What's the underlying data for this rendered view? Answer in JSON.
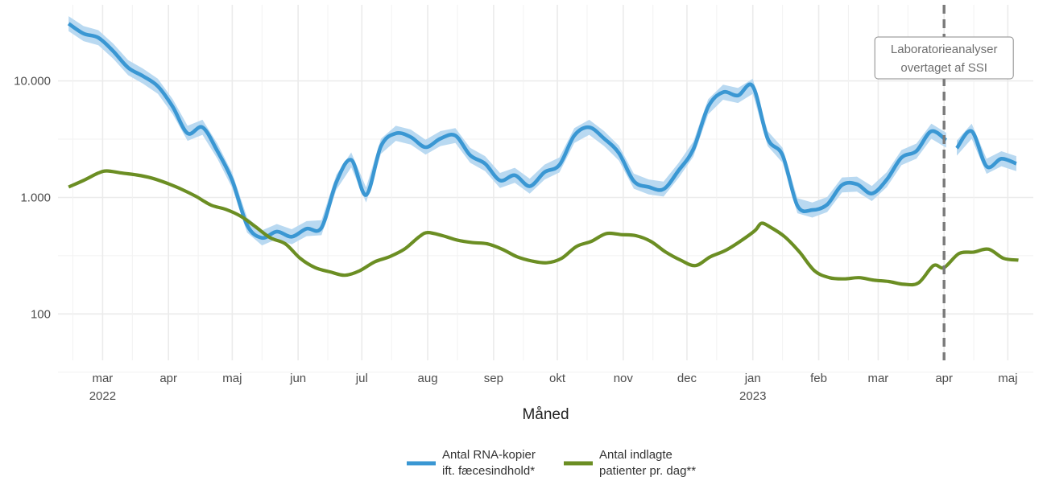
{
  "chart_data": {
    "type": "line",
    "y_scale": "log10",
    "ylim": [
      40,
      45000
    ],
    "xlim": [
      "2022-02-08",
      "2023-05-13"
    ],
    "xlabel": "Måned",
    "ylabel": "",
    "grid": true,
    "legend_position": "bottom",
    "colors": {
      "rna": "#3a97d3",
      "rna_band": "#b9d9f1",
      "hosp": "#6b8e23",
      "vline": "#7a7a7a",
      "grid": "#ebebeb"
    },
    "y_ticks": [
      {
        "value": 100,
        "label": "100"
      },
      {
        "value": 1000,
        "label": "1.000"
      },
      {
        "value": 10000,
        "label": "10.000"
      }
    ],
    "x_ticks": [
      {
        "date": "2022-03-01",
        "label": "mar",
        "year": "2022"
      },
      {
        "date": "2022-04-01",
        "label": "apr",
        "year": ""
      },
      {
        "date": "2022-05-01",
        "label": "maj",
        "year": ""
      },
      {
        "date": "2022-06-01",
        "label": "jun",
        "year": ""
      },
      {
        "date": "2022-07-01",
        "label": "jul",
        "year": ""
      },
      {
        "date": "2022-08-01",
        "label": "aug",
        "year": ""
      },
      {
        "date": "2022-09-01",
        "label": "sep",
        "year": ""
      },
      {
        "date": "2022-10-01",
        "label": "okt",
        "year": ""
      },
      {
        "date": "2022-11-01",
        "label": "nov",
        "year": ""
      },
      {
        "date": "2022-12-01",
        "label": "dec",
        "year": ""
      },
      {
        "date": "2023-01-01",
        "label": "jan",
        "year": "2023"
      },
      {
        "date": "2023-02-01",
        "label": "feb",
        "year": ""
      },
      {
        "date": "2023-03-01",
        "label": "mar",
        "year": ""
      },
      {
        "date": "2023-04-01",
        "label": "apr",
        "year": ""
      },
      {
        "date": "2023-05-01",
        "label": "maj",
        "year": ""
      }
    ],
    "vline": {
      "date": "2023-04-01",
      "annotation_lines": [
        "Laboratorieanalyser",
        "overtaget af SSI"
      ]
    },
    "series": [
      {
        "name_lines": [
          "Antal RNA-kopier",
          "ift. fæcesindhold*"
        ],
        "key": "rna",
        "segments": [
          [
            [
              "2022-02-13",
              31000
            ],
            [
              "2022-02-20",
              25500
            ],
            [
              "2022-02-27",
              23500
            ],
            [
              "2022-03-06",
              18000
            ],
            [
              "2022-03-13",
              13000
            ],
            [
              "2022-03-20",
              11000
            ],
            [
              "2022-03-27",
              9000
            ],
            [
              "2022-04-03",
              6000
            ],
            [
              "2022-04-10",
              3550
            ],
            [
              "2022-04-17",
              4000
            ],
            [
              "2022-04-24",
              2500
            ],
            [
              "2022-05-01",
              1400
            ],
            [
              "2022-05-08",
              580
            ],
            [
              "2022-05-15",
              450
            ],
            [
              "2022-05-22",
              510
            ],
            [
              "2022-05-29",
              460
            ],
            [
              "2022-06-05",
              540
            ],
            [
              "2022-06-12",
              550
            ],
            [
              "2022-06-19",
              1350
            ],
            [
              "2022-06-26",
              2100
            ],
            [
              "2022-07-03",
              1050
            ],
            [
              "2022-07-10",
              2750
            ],
            [
              "2022-07-17",
              3550
            ],
            [
              "2022-07-24",
              3300
            ],
            [
              "2022-07-31",
              2700
            ],
            [
              "2022-08-07",
              3200
            ],
            [
              "2022-08-14",
              3400
            ],
            [
              "2022-08-21",
              2300
            ],
            [
              "2022-08-28",
              1950
            ],
            [
              "2022-09-04",
              1400
            ],
            [
              "2022-09-11",
              1550
            ],
            [
              "2022-09-18",
              1250
            ],
            [
              "2022-09-25",
              1650
            ],
            [
              "2022-10-02",
              1900
            ],
            [
              "2022-10-09",
              3400
            ],
            [
              "2022-10-16",
              4000
            ],
            [
              "2022-10-23",
              3200
            ],
            [
              "2022-10-30",
              2400
            ],
            [
              "2022-11-06",
              1380
            ],
            [
              "2022-11-13",
              1230
            ],
            [
              "2022-11-20",
              1180
            ],
            [
              "2022-11-27",
              1700
            ],
            [
              "2022-12-04",
              2600
            ],
            [
              "2022-12-11",
              6000
            ],
            [
              "2022-12-18",
              8000
            ],
            [
              "2022-12-25",
              7500
            ],
            [
              "2023-01-01",
              9000
            ],
            [
              "2023-01-08",
              3200
            ],
            [
              "2023-01-15",
              2300
            ],
            [
              "2023-01-22",
              850
            ],
            [
              "2023-01-29",
              780
            ],
            [
              "2023-02-05",
              870
            ],
            [
              "2023-02-12",
              1280
            ],
            [
              "2023-02-19",
              1300
            ],
            [
              "2023-02-26",
              1080
            ],
            [
              "2023-03-05",
              1420
            ],
            [
              "2023-03-12",
              2200
            ],
            [
              "2023-03-19",
              2500
            ],
            [
              "2023-03-26",
              3700
            ],
            [
              "2023-04-02",
              3100
            ]
          ],
          [
            [
              "2023-04-07",
              2650
            ],
            [
              "2023-04-14",
              3700
            ],
            [
              "2023-04-21",
              1850
            ],
            [
              "2023-04-28",
              2150
            ],
            [
              "2023-05-05",
              1950
            ]
          ]
        ]
      },
      {
        "name_lines": [
          "Antal indlagte",
          "patienter pr. dag**"
        ],
        "key": "hosp",
        "segments": [
          [
            [
              "2022-02-13",
              1230
            ],
            [
              "2022-02-20",
              1400
            ],
            [
              "2022-02-27",
              1620
            ],
            [
              "2022-03-03",
              1690
            ],
            [
              "2022-03-10",
              1620
            ],
            [
              "2022-03-17",
              1560
            ],
            [
              "2022-03-24",
              1470
            ],
            [
              "2022-03-31",
              1330
            ],
            [
              "2022-04-07",
              1180
            ],
            [
              "2022-04-14",
              1020
            ],
            [
              "2022-04-21",
              860
            ],
            [
              "2022-04-28",
              790
            ],
            [
              "2022-05-05",
              690
            ],
            [
              "2022-05-12",
              560
            ],
            [
              "2022-05-19",
              450
            ],
            [
              "2022-05-26",
              400
            ],
            [
              "2022-06-02",
              300
            ],
            [
              "2022-06-09",
              250
            ],
            [
              "2022-06-16",
              230
            ],
            [
              "2022-06-23",
              215
            ],
            [
              "2022-06-30",
              235
            ],
            [
              "2022-07-07",
              280
            ],
            [
              "2022-07-14",
              310
            ],
            [
              "2022-07-21",
              360
            ],
            [
              "2022-07-28",
              460
            ],
            [
              "2022-08-01",
              500
            ],
            [
              "2022-08-08",
              470
            ],
            [
              "2022-08-15",
              430
            ],
            [
              "2022-08-22",
              410
            ],
            [
              "2022-08-29",
              400
            ],
            [
              "2022-09-05",
              360
            ],
            [
              "2022-09-12",
              310
            ],
            [
              "2022-09-19",
              285
            ],
            [
              "2022-09-26",
              275
            ],
            [
              "2022-10-03",
              300
            ],
            [
              "2022-10-10",
              380
            ],
            [
              "2022-10-17",
              420
            ],
            [
              "2022-10-24",
              490
            ],
            [
              "2022-10-31",
              480
            ],
            [
              "2022-11-07",
              470
            ],
            [
              "2022-11-14",
              420
            ],
            [
              "2022-11-21",
              340
            ],
            [
              "2022-11-28",
              290
            ],
            [
              "2022-12-05",
              260
            ],
            [
              "2022-12-12",
              310
            ],
            [
              "2022-12-19",
              350
            ],
            [
              "2022-12-26",
              420
            ],
            [
              "2023-01-02",
              520
            ],
            [
              "2023-01-05",
              600
            ],
            [
              "2023-01-09",
              560
            ],
            [
              "2023-01-16",
              460
            ],
            [
              "2023-01-23",
              340
            ],
            [
              "2023-01-30",
              235
            ],
            [
              "2023-02-06",
              205
            ],
            [
              "2023-02-13",
              200
            ],
            [
              "2023-02-20",
              205
            ],
            [
              "2023-02-27",
              195
            ],
            [
              "2023-03-06",
              190
            ],
            [
              "2023-03-13",
              180
            ],
            [
              "2023-03-20",
              185
            ],
            [
              "2023-03-27",
              260
            ],
            [
              "2023-04-01",
              250
            ],
            [
              "2023-04-08",
              330
            ],
            [
              "2023-04-15",
              340
            ],
            [
              "2023-04-22",
              360
            ],
            [
              "2023-04-29",
              300
            ],
            [
              "2023-05-06",
              290
            ]
          ]
        ]
      }
    ]
  }
}
